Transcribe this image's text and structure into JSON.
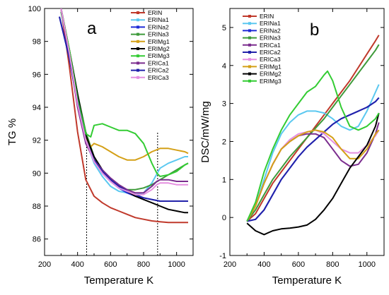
{
  "chart_data": [
    {
      "type": "line",
      "panel_label": "a",
      "xlabel": "Temperature K",
      "ylabel": "TG %",
      "xlim": [
        200,
        1100
      ],
      "ylim": [
        85,
        100
      ],
      "xticks": [
        "200",
        "400",
        "600",
        "800",
        "1000"
      ],
      "xtick_values": [
        200,
        400,
        600,
        800,
        1000
      ],
      "yticks": [
        "86",
        "88",
        "90",
        "92",
        "94",
        "96",
        "98",
        "100"
      ],
      "ytick_values": [
        86,
        88,
        90,
        92,
        94,
        96,
        98,
        100
      ],
      "vlines": [
        455,
        885
      ],
      "legend_placement": "top-right",
      "series": [
        {
          "name": "ERIN",
          "color": "#c0392b",
          "x": [
            300,
            350,
            400,
            450,
            500,
            550,
            600,
            650,
            700,
            750,
            800,
            850,
            900,
            950,
            1000,
            1050,
            1070
          ],
          "y": [
            100,
            96.5,
            92.5,
            89.6,
            88.6,
            88.2,
            87.9,
            87.7,
            87.5,
            87.3,
            87.2,
            87.1,
            87.05,
            87.0,
            87.0,
            87.0,
            87.0
          ]
        },
        {
          "name": "ERINa1",
          "color": "#5bc8f0",
          "x": [
            300,
            350,
            400,
            450,
            500,
            550,
            600,
            650,
            700,
            750,
            800,
            850,
            900,
            950,
            1000,
            1050,
            1070
          ],
          "y": [
            99.8,
            97.5,
            94.5,
            92.0,
            90.6,
            89.8,
            89.2,
            88.9,
            88.8,
            88.7,
            88.8,
            89.4,
            90.3,
            90.6,
            90.8,
            91.0,
            91.0
          ]
        },
        {
          "name": "ERINa2",
          "color": "#1f2bd6",
          "x": [
            290,
            350,
            400,
            450,
            500,
            550,
            600,
            650,
            700,
            750,
            800,
            850,
            900,
            950,
            1000,
            1050,
            1070
          ],
          "y": [
            99.5,
            97.0,
            94.2,
            92.0,
            90.8,
            90.0,
            89.5,
            89.1,
            88.8,
            88.6,
            88.5,
            88.4,
            88.3,
            88.3,
            88.3,
            88.3,
            88.3
          ]
        },
        {
          "name": "ERINa3",
          "color": "#3e9a3a",
          "x": [
            300,
            350,
            400,
            450,
            500,
            550,
            600,
            650,
            700,
            750,
            800,
            850,
            900,
            950,
            1000,
            1050,
            1070
          ],
          "y": [
            99.8,
            97.5,
            94.8,
            92.5,
            91.0,
            90.1,
            89.6,
            89.2,
            89.0,
            89.0,
            89.1,
            89.3,
            89.6,
            89.9,
            90.2,
            90.5,
            90.6
          ]
        },
        {
          "name": "ERIMg1",
          "color": "#d4a017",
          "x": [
            300,
            350,
            400,
            450,
            480,
            500,
            550,
            600,
            650,
            700,
            750,
            800,
            850,
            900,
            950,
            1000,
            1050,
            1070
          ],
          "y": [
            100,
            97.5,
            94.5,
            92.2,
            91.6,
            91.8,
            91.6,
            91.3,
            91.0,
            90.8,
            90.8,
            91.0,
            91.3,
            91.5,
            91.5,
            91.4,
            91.3,
            91.2
          ]
        },
        {
          "name": "ERIMg2",
          "color": "#000000",
          "x": [
            300,
            350,
            400,
            450,
            500,
            550,
            600,
            650,
            700,
            750,
            800,
            850,
            900,
            950,
            1000,
            1050,
            1070
          ],
          "y": [
            100,
            97.5,
            94.8,
            92.3,
            91.0,
            90.2,
            89.6,
            89.2,
            88.9,
            88.6,
            88.4,
            88.2,
            88.0,
            87.8,
            87.7,
            87.6,
            87.6
          ]
        },
        {
          "name": "ERIMg3",
          "color": "#33cc33",
          "x": [
            300,
            350,
            400,
            450,
            480,
            500,
            550,
            600,
            650,
            700,
            750,
            800,
            850,
            880,
            900,
            950,
            1000,
            1050,
            1070
          ],
          "y": [
            100,
            97.5,
            94.5,
            92.4,
            92.2,
            92.9,
            93.0,
            92.8,
            92.6,
            92.6,
            92.4,
            91.8,
            90.6,
            90.0,
            89.8,
            89.9,
            90.1,
            90.5,
            90.6
          ]
        },
        {
          "name": "ERICa1",
          "color": "#7b2d8e",
          "x": [
            300,
            350,
            400,
            450,
            500,
            550,
            600,
            650,
            700,
            750,
            800,
            850,
            880,
            900,
            950,
            1000,
            1050,
            1070
          ],
          "y": [
            100,
            97.2,
            94.0,
            91.8,
            90.8,
            90.2,
            89.7,
            89.3,
            89.0,
            88.8,
            88.8,
            89.2,
            89.5,
            89.6,
            89.6,
            89.5,
            89.5,
            89.5
          ]
        },
        {
          "name": "ERICa2",
          "color": "#2222aa",
          "x": [
            290,
            350,
            400,
            450,
            500,
            550,
            600,
            650,
            700,
            750,
            800,
            850,
            900,
            950,
            1000,
            1050,
            1070
          ],
          "y": [
            99.5,
            97.0,
            94.3,
            92.0,
            90.8,
            90.1,
            89.6,
            89.2,
            88.9,
            88.7,
            88.5,
            88.4,
            88.3,
            88.3,
            88.3,
            88.3,
            88.3
          ]
        },
        {
          "name": "ERICa3",
          "color": "#e58fe0",
          "x": [
            300,
            350,
            400,
            450,
            500,
            550,
            600,
            650,
            700,
            750,
            800,
            850,
            880,
            900,
            950,
            1000,
            1050,
            1070
          ],
          "y": [
            100,
            97.3,
            94.2,
            92.0,
            90.7,
            90.0,
            89.5,
            89.1,
            88.9,
            88.7,
            88.7,
            89.0,
            89.3,
            89.4,
            89.4,
            89.3,
            89.3,
            89.3
          ]
        }
      ]
    },
    {
      "type": "line",
      "panel_label": "b",
      "xlabel": "Temperature K",
      "ylabel": "DSC/mW/mg",
      "xlim": [
        200,
        1100
      ],
      "ylim": [
        -1,
        5.5
      ],
      "xticks": [
        "200",
        "400",
        "600",
        "800",
        "1000"
      ],
      "xtick_values": [
        200,
        400,
        600,
        800,
        1000
      ],
      "yticks": [
        "-1",
        "0",
        "1",
        "2",
        "3",
        "4",
        "5"
      ],
      "ytick_values": [
        -1,
        0,
        1,
        2,
        3,
        4,
        5
      ],
      "legend_placement": "top-left",
      "series": [
        {
          "name": "ERIN",
          "color": "#c0392b",
          "x": [
            300,
            350,
            400,
            450,
            500,
            550,
            600,
            650,
            700,
            750,
            800,
            850,
            900,
            950,
            1000,
            1050,
            1070
          ],
          "y": [
            -0.1,
            0.1,
            0.5,
            0.9,
            1.2,
            1.5,
            1.8,
            2.1,
            2.4,
            2.7,
            3.0,
            3.3,
            3.6,
            3.95,
            4.3,
            4.65,
            4.8
          ]
        },
        {
          "name": "ERINa1",
          "color": "#5bc8f0",
          "x": [
            300,
            350,
            400,
            450,
            500,
            550,
            600,
            650,
            700,
            750,
            800,
            850,
            900,
            950,
            1000,
            1050,
            1070
          ],
          "y": [
            -0.1,
            0.3,
            1.0,
            1.7,
            2.2,
            2.5,
            2.7,
            2.8,
            2.8,
            2.75,
            2.6,
            2.4,
            2.3,
            2.4,
            2.8,
            3.3,
            3.5
          ]
        },
        {
          "name": "ERINa2",
          "color": "#1f2bd6",
          "x": [
            300,
            350,
            400,
            450,
            500,
            550,
            600,
            650,
            700,
            750,
            800,
            850,
            900,
            950,
            1000,
            1050,
            1070
          ],
          "y": [
            -0.1,
            -0.05,
            0.2,
            0.6,
            1.0,
            1.3,
            1.6,
            1.85,
            2.05,
            2.25,
            2.45,
            2.6,
            2.7,
            2.8,
            2.9,
            3.05,
            3.15
          ]
        },
        {
          "name": "ERINa3",
          "color": "#3e9a3a",
          "x": [
            300,
            350,
            400,
            450,
            500,
            550,
            600,
            650,
            700,
            750,
            800,
            850,
            900,
            950,
            1000,
            1050,
            1070
          ],
          "y": [
            -0.1,
            0.2,
            0.6,
            1.0,
            1.3,
            1.6,
            1.85,
            2.1,
            2.35,
            2.6,
            2.9,
            3.2,
            3.5,
            3.8,
            4.1,
            4.4,
            4.55
          ]
        },
        {
          "name": "ERICa1",
          "color": "#7b2d8e",
          "x": [
            300,
            350,
            400,
            450,
            500,
            550,
            600,
            650,
            700,
            750,
            800,
            850,
            900,
            950,
            1000,
            1050,
            1070
          ],
          "y": [
            -0.1,
            0.3,
            0.9,
            1.4,
            1.8,
            2.0,
            2.15,
            2.2,
            2.2,
            2.1,
            1.8,
            1.5,
            1.35,
            1.4,
            1.7,
            2.2,
            2.5
          ]
        },
        {
          "name": "ERICa2",
          "color": "#2222aa",
          "x": [
            300,
            350,
            400,
            450,
            500,
            550,
            600,
            650,
            700,
            750,
            800,
            850,
            900,
            950,
            1000,
            1050,
            1070
          ],
          "y": [
            -0.1,
            -0.05,
            0.2,
            0.6,
            1.0,
            1.3,
            1.6,
            1.85,
            2.05,
            2.25,
            2.45,
            2.6,
            2.7,
            2.8,
            2.9,
            3.05,
            3.15
          ]
        },
        {
          "name": "ERICa3",
          "color": "#e58fe0",
          "x": [
            300,
            350,
            400,
            450,
            500,
            550,
            600,
            650,
            700,
            750,
            800,
            850,
            900,
            950,
            1000,
            1050,
            1070
          ],
          "y": [
            -0.1,
            0.3,
            0.9,
            1.4,
            1.8,
            2.05,
            2.2,
            2.25,
            2.3,
            2.2,
            2.0,
            1.8,
            1.7,
            1.7,
            1.9,
            2.15,
            2.3
          ]
        },
        {
          "name": "ERIMg1",
          "color": "#d4a017",
          "x": [
            300,
            350,
            400,
            450,
            500,
            550,
            600,
            650,
            700,
            750,
            800,
            850,
            900,
            950,
            1000,
            1050,
            1070
          ],
          "y": [
            -0.1,
            0.3,
            0.9,
            1.4,
            1.8,
            2.0,
            2.15,
            2.25,
            2.3,
            2.25,
            2.1,
            1.8,
            1.55,
            1.55,
            1.8,
            2.2,
            2.3
          ]
        },
        {
          "name": "ERIMg2",
          "color": "#000000",
          "x": [
            300,
            350,
            400,
            450,
            500,
            550,
            600,
            650,
            700,
            750,
            800,
            850,
            900,
            950,
            1000,
            1050,
            1070
          ],
          "y": [
            -0.15,
            -0.35,
            -0.45,
            -0.35,
            -0.3,
            -0.28,
            -0.25,
            -0.2,
            -0.05,
            0.2,
            0.5,
            0.9,
            1.3,
            1.6,
            1.9,
            2.4,
            2.75
          ]
        },
        {
          "name": "ERIMg3",
          "color": "#33cc33",
          "x": [
            300,
            350,
            400,
            450,
            500,
            550,
            600,
            650,
            700,
            750,
            770,
            800,
            850,
            900,
            950,
            1000,
            1050,
            1070
          ],
          "y": [
            -0.1,
            0.4,
            1.2,
            1.8,
            2.3,
            2.7,
            3.0,
            3.3,
            3.45,
            3.75,
            3.85,
            3.6,
            2.9,
            2.4,
            2.3,
            2.4,
            2.6,
            2.75
          ]
        }
      ]
    }
  ]
}
